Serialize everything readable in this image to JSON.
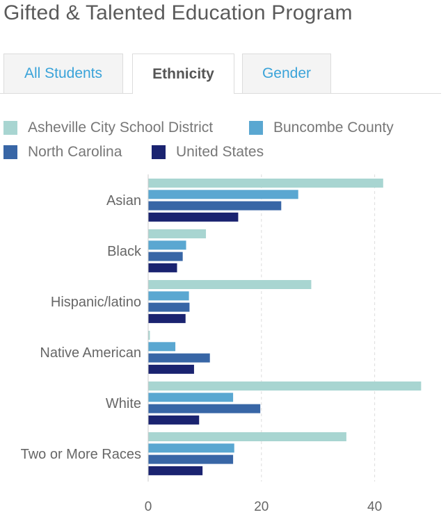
{
  "title": "Gifted & Talented Education Program",
  "tabs": [
    {
      "label": "All Students",
      "active": false
    },
    {
      "label": "Ethnicity",
      "active": true
    },
    {
      "label": "Gender",
      "active": false
    }
  ],
  "colors": {
    "asheville": "#a8d5d1",
    "buncombe": "#5aa7d1",
    "north_carolina": "#3866a6",
    "united_states": "#1a2370",
    "tab_link": "#3aa3d9"
  },
  "chart_data": {
    "type": "bar",
    "orientation": "horizontal",
    "categories": [
      "Asian",
      "Black",
      "Hispanic/latino",
      "Native American",
      "White",
      "Two or More Races"
    ],
    "series": [
      {
        "name": "Asheville City School District",
        "values": [
          41.5,
          10.2,
          28.8,
          0.3,
          48.2,
          35
        ]
      },
      {
        "name": "Buncombe County",
        "values": [
          26.5,
          6.7,
          7.2,
          4.8,
          15,
          15.2
        ]
      },
      {
        "name": "North Carolina",
        "values": [
          23.5,
          6.1,
          7.3,
          10.9,
          19.8,
          15
        ]
      },
      {
        "name": "United States",
        "values": [
          15.9,
          5.1,
          6.6,
          8.1,
          9,
          9.6
        ]
      }
    ],
    "x_ticks": [
      0,
      20,
      40
    ],
    "xlim": [
      0,
      49
    ],
    "grid": "vertical dashed",
    "legend": "top",
    "title": "",
    "xlabel": "",
    "ylabel": ""
  }
}
